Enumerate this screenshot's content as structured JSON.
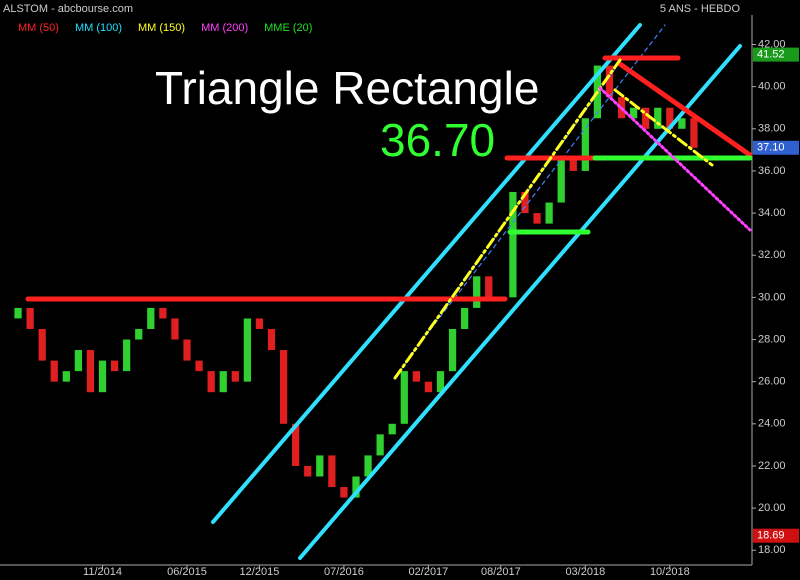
{
  "chart_data": {
    "type": "candlestick",
    "title": "ALSTOM - abcbourse.com",
    "subtitle": "5 ANS - HEBDO",
    "indicators": [
      {
        "name": "MM (50)",
        "color": "#ff2020"
      },
      {
        "name": "MM (100)",
        "color": "#20e0ff"
      },
      {
        "name": "MM (150)",
        "color": "#ffff20"
      },
      {
        "name": "MM (200)",
        "color": "#ff40ff"
      },
      {
        "name": "MME (20)",
        "color": "#20e020"
      }
    ],
    "annotations": [
      "Triangle Rectangle",
      "36.70"
    ],
    "categories": [
      null,
      null,
      null,
      null,
      null,
      null,
      null,
      "11/2014",
      null,
      null,
      null,
      null,
      null,
      null,
      "06/2015",
      null,
      null,
      null,
      null,
      null,
      "12/2015",
      null,
      null,
      null,
      null,
      null,
      null,
      "07/2016",
      null,
      null,
      null,
      null,
      null,
      null,
      "02/2017",
      null,
      null,
      null,
      null,
      null,
      "08/2017",
      null,
      null,
      null,
      null,
      null,
      null,
      "03/2018",
      null,
      null,
      null,
      null,
      null,
      null,
      "10/2018",
      null,
      null
    ],
    "open": [
      29.0,
      29.5,
      28.5,
      27.0,
      26.0,
      26.5,
      27.5,
      25.5,
      27.0,
      26.5,
      28.0,
      28.5,
      29.5,
      29.0,
      28.0,
      27.0,
      26.5,
      25.5,
      26.5,
      26.0,
      29.0,
      28.5,
      27.5,
      24.0,
      22.0,
      21.5,
      22.5,
      21.0,
      20.5,
      21.5,
      22.5,
      23.5,
      24.0,
      26.5,
      26.0,
      25.5,
      26.5,
      28.5,
      29.5,
      31.0,
      30.0,
      30.0,
      35.0,
      34.0,
      33.5,
      34.5,
      36.5,
      36.0,
      38.5,
      41.0,
      39.5,
      38.5,
      39.0,
      38.0,
      39.0,
      38.0,
      38.5
    ],
    "close": [
      29.5,
      28.5,
      27.0,
      26.0,
      26.5,
      27.5,
      25.5,
      27.0,
      26.5,
      28.0,
      28.5,
      29.5,
      29.0,
      28.0,
      27.0,
      26.5,
      25.5,
      26.5,
      26.0,
      29.0,
      28.5,
      27.5,
      24.0,
      22.0,
      21.5,
      22.5,
      21.0,
      20.5,
      21.5,
      22.5,
      23.5,
      24.0,
      26.5,
      26.0,
      25.5,
      26.5,
      28.5,
      29.5,
      31.0,
      30.0,
      30.0,
      35.0,
      34.0,
      33.5,
      34.5,
      36.5,
      36.0,
      38.5,
      41.0,
      39.5,
      38.5,
      39.0,
      38.0,
      39.0,
      38.0,
      38.5,
      37.1
    ],
    "up_color": "#30d030",
    "down_color": "#e02020",
    "ylim": [
      17.3,
      43.4
    ],
    "yticks": [
      {
        "value": 18,
        "label": "18.00"
      },
      {
        "value": 20,
        "label": "20.00"
      },
      {
        "value": 22,
        "label": "22.00"
      },
      {
        "value": 24,
        "label": "24.00"
      },
      {
        "value": 26,
        "label": "26.00"
      },
      {
        "value": 28,
        "label": "28.00"
      },
      {
        "value": 30,
        "label": "30.00"
      },
      {
        "value": 32,
        "label": "32.00"
      },
      {
        "value": 34,
        "label": "34.00"
      },
      {
        "value": 36,
        "label": "36.00"
      },
      {
        "value": 38,
        "label": "38.00"
      },
      {
        "value": 40,
        "label": "40.00"
      },
      {
        "value": 42,
        "label": "42.00"
      }
    ],
    "price_labels": [
      {
        "value": 41.52,
        "label": "41.52",
        "color": "#1a9a1a"
      },
      {
        "value": 37.1,
        "label": "37.10",
        "color": "#3060d0"
      },
      {
        "value": 18.69,
        "label": "18.69",
        "color": "#d01010"
      }
    ]
  }
}
